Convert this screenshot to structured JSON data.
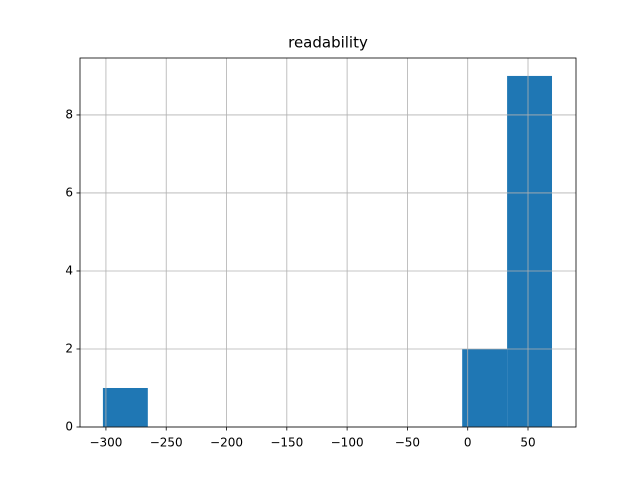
{
  "chart_data": {
    "type": "histogram",
    "title": "readability",
    "bins": [
      -302.5,
      -265.26,
      -228.02,
      -190.78,
      -153.54,
      -116.3,
      -79.06,
      -41.82,
      -4.58,
      32.66,
      69.9
    ],
    "counts": [
      1,
      0,
      0,
      0,
      0,
      0,
      0,
      0,
      2,
      9
    ],
    "color": "#1f77b4",
    "xlim": [
      -321.5,
      89.8
    ],
    "xticks": [
      {
        "value": -300,
        "label": "−300"
      },
      {
        "value": -250,
        "label": "−250"
      },
      {
        "value": -200,
        "label": "−200"
      },
      {
        "value": -150,
        "label": "−150"
      },
      {
        "value": -100,
        "label": "−100"
      },
      {
        "value": -50,
        "label": "−50"
      },
      0,
      50
    ],
    "ylim": [
      0,
      9.46
    ],
    "yticks": [
      0,
      2,
      4,
      6,
      8
    ],
    "grid": true
  }
}
